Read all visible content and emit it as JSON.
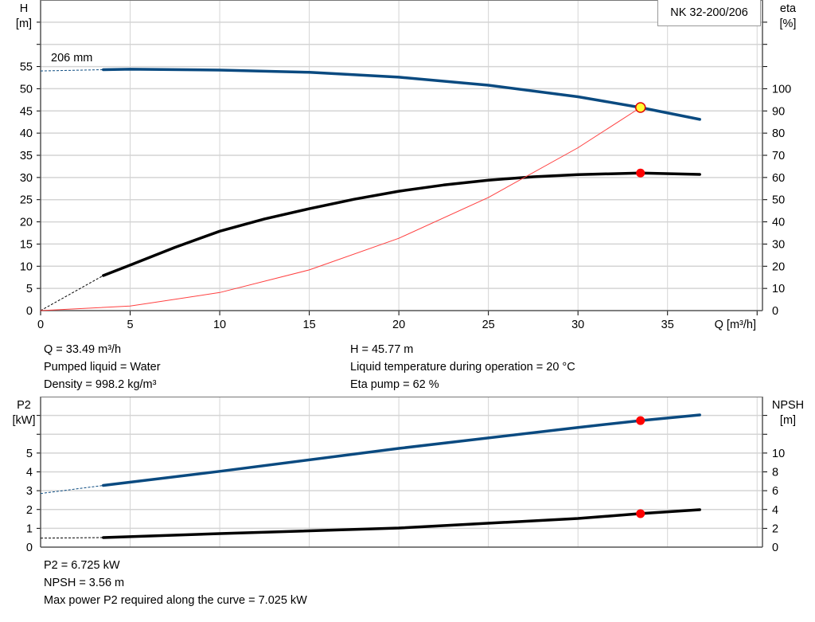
{
  "chart_data": [
    {
      "type": "line",
      "legend": "NK 32-200/206",
      "curve_label": "206 mm",
      "xlabel": "Q [m³/h]",
      "ylabel": [
        "H",
        "[m]"
      ],
      "y2label": [
        "eta",
        "[%]"
      ],
      "xlim": [
        0,
        40.3
      ],
      "ylim": [
        0,
        70
      ],
      "y2lim": [
        0,
        140
      ],
      "xticks": [
        0,
        5,
        10,
        15,
        20,
        25,
        30,
        35
      ],
      "yticks": [
        0,
        5,
        10,
        15,
        20,
        25,
        30,
        35,
        40,
        45,
        50,
        55
      ],
      "y2ticks": [
        0,
        10,
        20,
        30,
        40,
        50,
        60,
        70,
        80,
        90,
        100
      ],
      "grid": true,
      "series": [
        {
          "name": "H",
          "axis": "left",
          "color": "#0a4a80",
          "extrapolated": {
            "x": [
              0,
              3.5
            ],
            "y": [
              54.0,
              54.3
            ]
          },
          "x": [
            3.5,
            5,
            10,
            15,
            20,
            25,
            30,
            33.49,
            36.8
          ],
          "y": [
            54.3,
            54.4,
            54.2,
            53.7,
            52.6,
            50.8,
            48.2,
            45.77,
            43.1
          ]
        },
        {
          "name": "eta pump",
          "axis": "right",
          "color": "#000000",
          "extrapolated": {
            "x": [
              0,
              3.5
            ],
            "y": [
              0,
              15.8
            ]
          },
          "x": [
            3.5,
            5,
            7.5,
            10,
            12.5,
            15,
            17.5,
            20,
            22.5,
            25,
            27.5,
            30,
            33.49,
            36.8
          ],
          "y": [
            15.8,
            20.5,
            28.5,
            35.8,
            41.3,
            45.9,
            50.2,
            53.8,
            56.6,
            58.8,
            60.3,
            61.3,
            62,
            61.4
          ]
        },
        {
          "name": "system curve",
          "axis": "left",
          "color": "#ff4040",
          "x": [
            0,
            5,
            10,
            15,
            20,
            25,
            30,
            33.49
          ],
          "y": [
            0,
            1.02,
            4.08,
            9.18,
            16.3,
            25.5,
            36.7,
            45.77
          ]
        }
      ],
      "duty_point": {
        "x": 33.49,
        "y": 45.77,
        "eta": 62
      }
    },
    {
      "type": "line",
      "xlim": [
        0,
        40.3
      ],
      "ylabel": [
        "P2",
        "[kW]"
      ],
      "y2label": [
        "NPSH",
        "[m]"
      ],
      "ylim": [
        0,
        8
      ],
      "y2lim": [
        0,
        16
      ],
      "yticks": [
        0,
        1,
        2,
        3,
        4,
        5
      ],
      "y2ticks": [
        0,
        2,
        4,
        6,
        8,
        10
      ],
      "grid": true,
      "series": [
        {
          "name": "P2",
          "axis": "left",
          "color": "#0a4a80",
          "extrapolated": {
            "x": [
              0,
              3.5
            ],
            "y": [
              2.85,
              3.28
            ]
          },
          "x": [
            3.5,
            10,
            20,
            30,
            33.49,
            36.8
          ],
          "y": [
            3.28,
            4.03,
            5.25,
            6.36,
            6.725,
            7.025
          ]
        },
        {
          "name": "NPSH",
          "axis": "right",
          "color": "#000000",
          "extrapolated": {
            "x": [
              0,
              3.5
            ],
            "y": [
              0.96,
              1.02
            ]
          },
          "x": [
            3.5,
            10,
            20,
            30,
            33.49,
            36.8
          ],
          "y": [
            1.02,
            1.44,
            2.03,
            3.05,
            3.56,
            3.98
          ]
        }
      ],
      "duty_point": {
        "x": 33.49,
        "p2": 6.725,
        "npsh": 3.56
      }
    }
  ],
  "info_top": {
    "q": "Q = 33.49 m³/h",
    "liquid": "Pumped liquid = Water",
    "density": "Density = 998.2 kg/m³",
    "h": "H = 45.77 m",
    "temp": "Liquid temperature during operation = 20 °C",
    "eta": "Eta pump = 62 %"
  },
  "info_bottom": {
    "p2": "P2 = 6.725 kW",
    "npsh": "NPSH = 3.56 m",
    "max_power": "Max power P2 required along the curve = 7.025 kW"
  }
}
